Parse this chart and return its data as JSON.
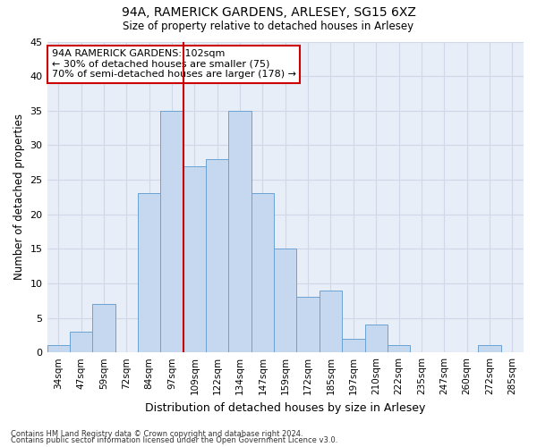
{
  "title1": "94A, RAMERICK GARDENS, ARLESEY, SG15 6XZ",
  "title2": "Size of property relative to detached houses in Arlesey",
  "xlabel": "Distribution of detached houses by size in Arlesey",
  "ylabel": "Number of detached properties",
  "categories": [
    "34sqm",
    "47sqm",
    "59sqm",
    "72sqm",
    "84sqm",
    "97sqm",
    "109sqm",
    "122sqm",
    "134sqm",
    "147sqm",
    "159sqm",
    "172sqm",
    "185sqm",
    "197sqm",
    "210sqm",
    "222sqm",
    "235sqm",
    "247sqm",
    "260sqm",
    "272sqm",
    "285sqm"
  ],
  "bar_heights": [
    1,
    3,
    7,
    0,
    23,
    35,
    27,
    28,
    35,
    23,
    15,
    8,
    9,
    2,
    4,
    1,
    0,
    0,
    0,
    1,
    0
  ],
  "bar_color": "#c5d8f0",
  "bar_edge_color": "#6aa3d4",
  "ylim": [
    0,
    45
  ],
  "yticks": [
    0,
    5,
    10,
    15,
    20,
    25,
    30,
    35,
    40,
    45
  ],
  "property_line_x": 5,
  "property_line_color": "#cc0000",
  "annotation_text": "94A RAMERICK GARDENS: 102sqm\n← 30% of detached houses are smaller (75)\n70% of semi-detached houses are larger (178) →",
  "annotation_box_color": "#ffffff",
  "annotation_box_edge": "#cc0000",
  "footer1": "Contains HM Land Registry data © Crown copyright and database right 2024.",
  "footer2": "Contains public sector information licensed under the Open Government Licence v3.0.",
  "grid_color": "#d0d8e8",
  "background_color": "#e8eef8"
}
